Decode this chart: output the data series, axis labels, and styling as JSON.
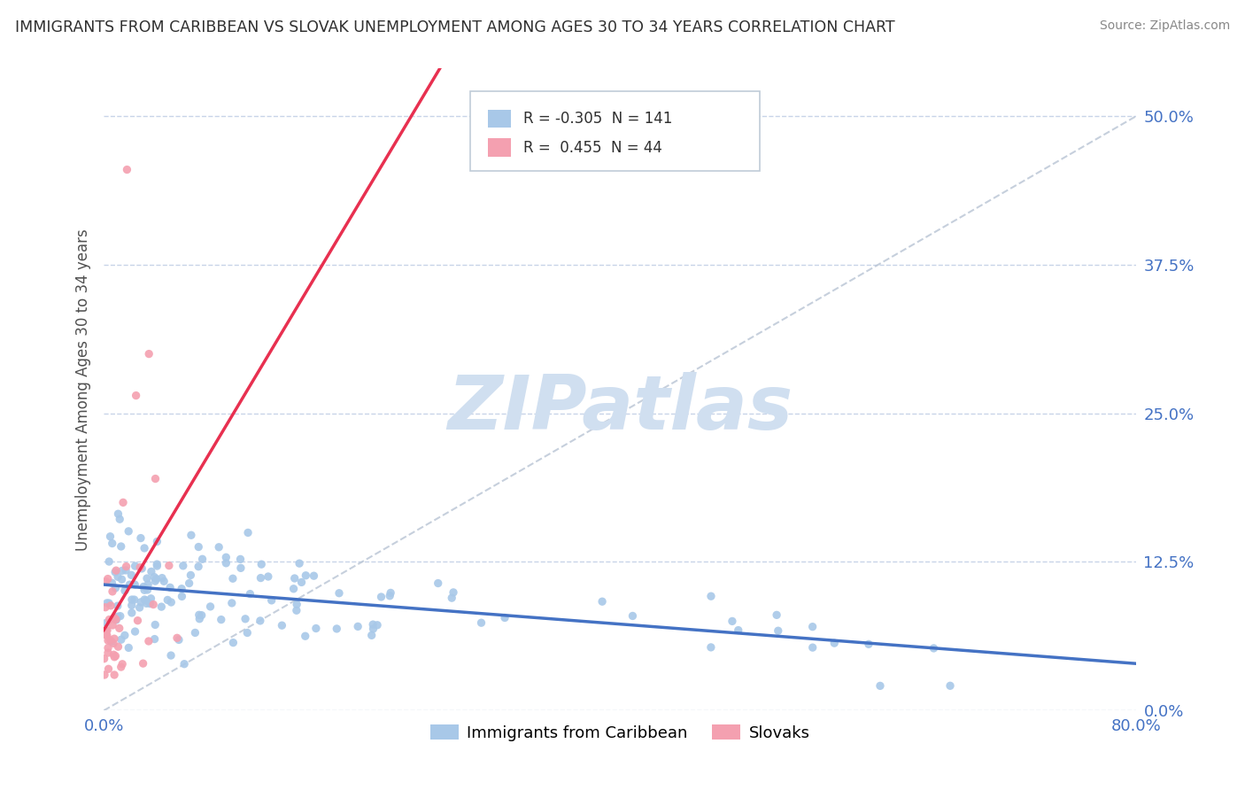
{
  "title": "IMMIGRANTS FROM CARIBBEAN VS SLOVAK UNEMPLOYMENT AMONG AGES 30 TO 34 YEARS CORRELATION CHART",
  "source": "Source: ZipAtlas.com",
  "ylabel": "Unemployment Among Ages 30 to 34 years",
  "ytick_values": [
    0.0,
    0.125,
    0.25,
    0.375,
    0.5
  ],
  "xrange": [
    0.0,
    0.8
  ],
  "yrange": [
    0.0,
    0.54
  ],
  "legend_caribbean": "Immigrants from Caribbean",
  "legend_slovak": "Slovaks",
  "R_caribbean": -0.305,
  "N_caribbean": 141,
  "R_slovak": 0.455,
  "N_slovak": 44,
  "color_caribbean": "#a8c8e8",
  "color_slovak": "#f4a0b0",
  "line_color_caribbean": "#4472c4",
  "line_color_slovak": "#e83050",
  "watermark_color": "#d0dff0",
  "background_color": "#ffffff",
  "grid_color": "#c8d4e8",
  "title_color": "#303030",
  "axis_label_color": "#4472c4",
  "source_color": "#888888"
}
